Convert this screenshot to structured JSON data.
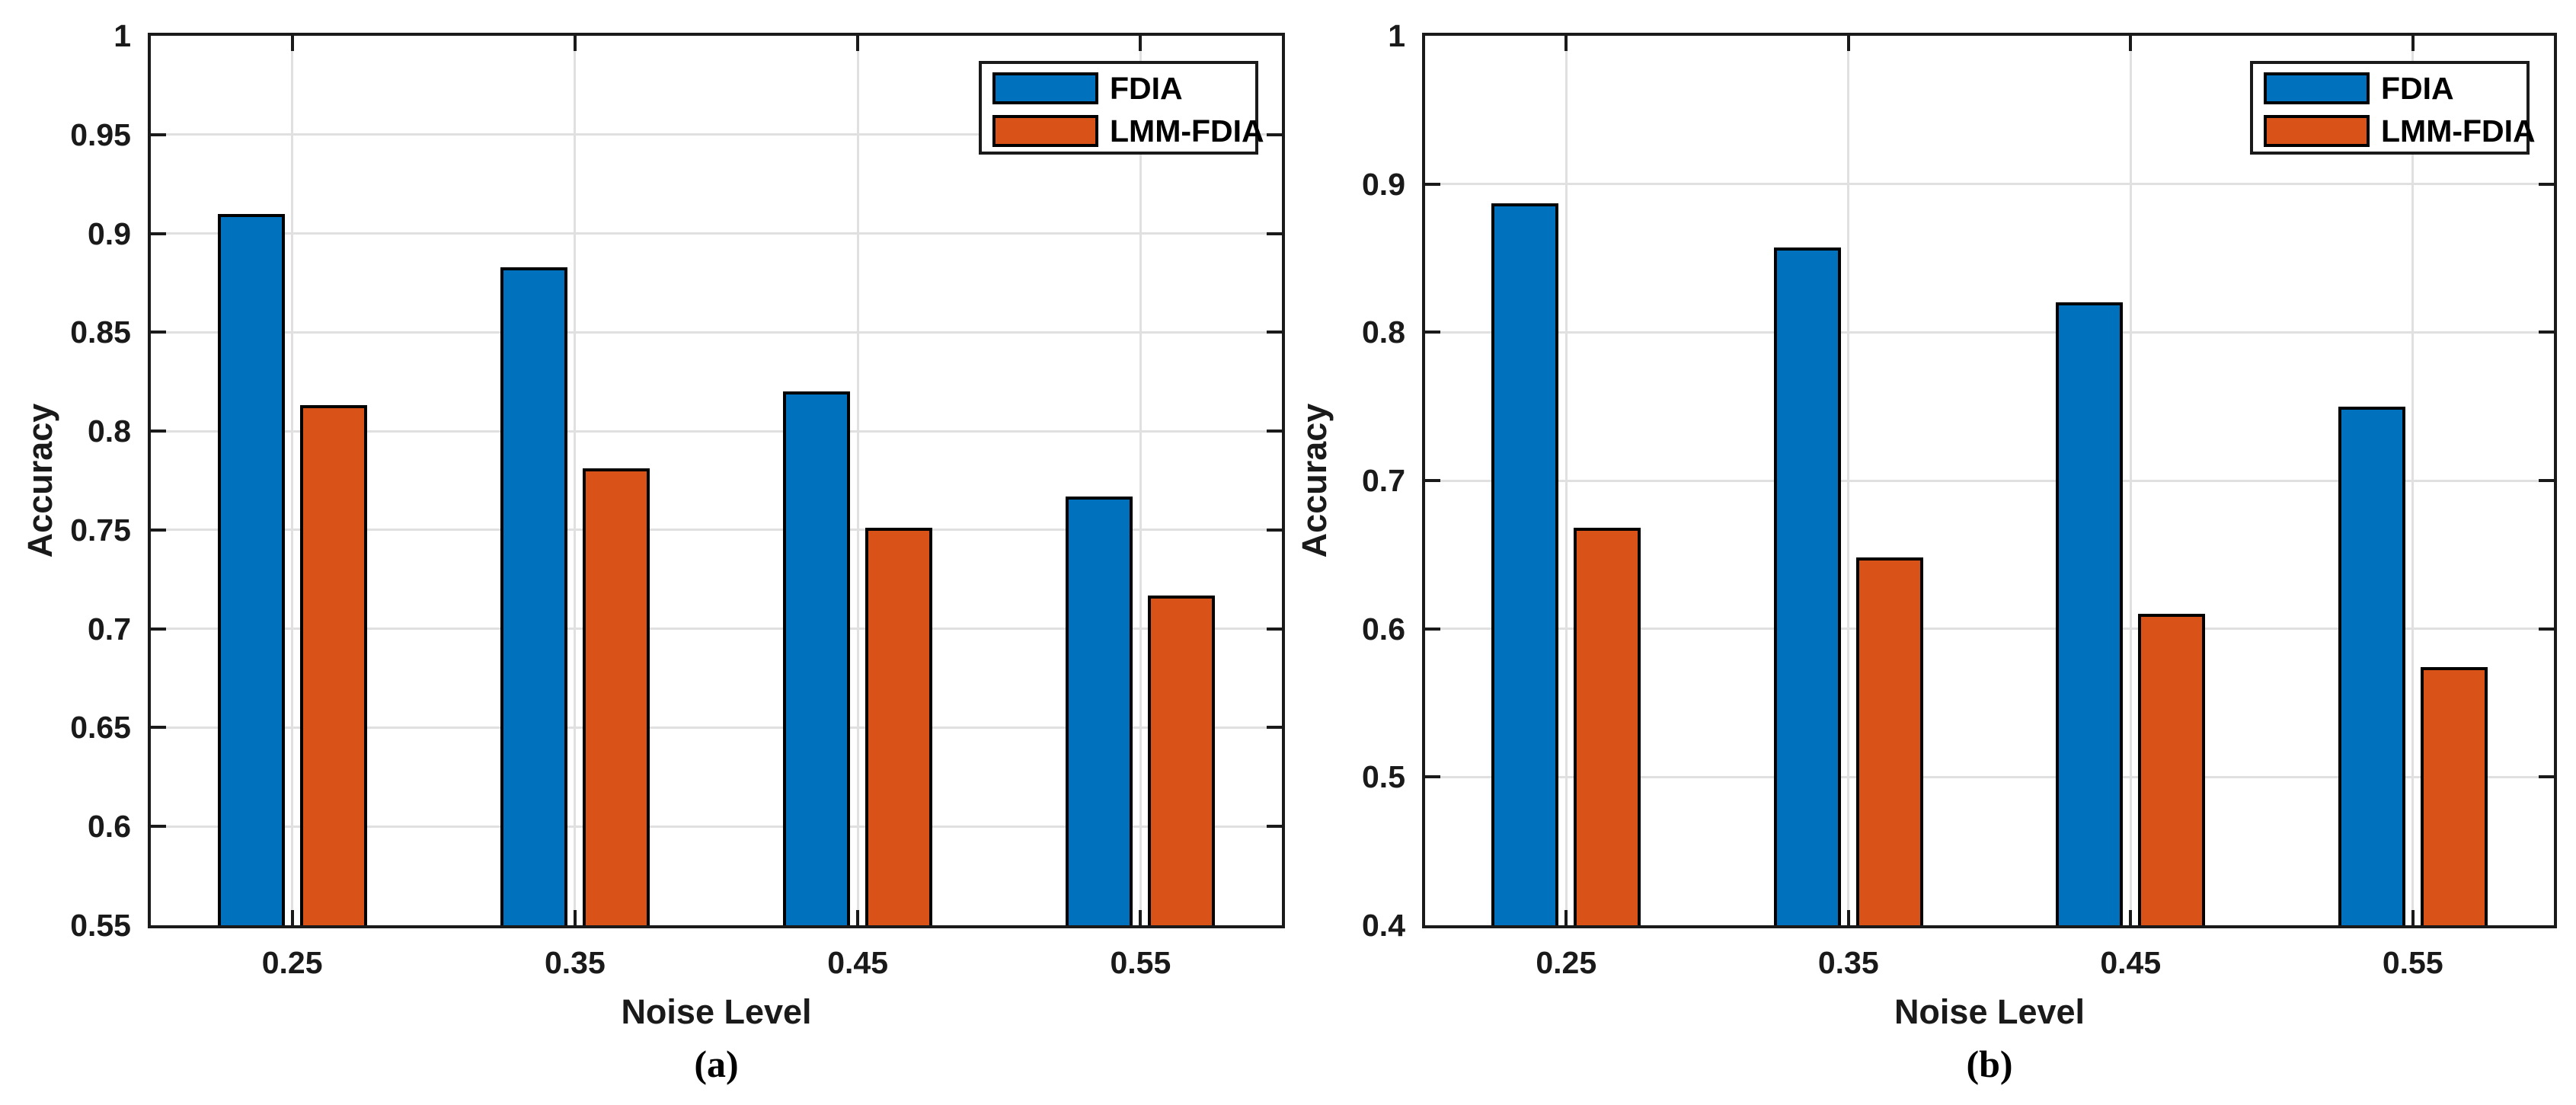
{
  "figure": {
    "background": "#ffffff",
    "axis_color": "#1a1a1a",
    "gridline_color": "#e0e0e0",
    "bar_edge_color": "#000000"
  },
  "chart_data": [
    {
      "type": "bar",
      "panel_caption": "(a)",
      "xlabel": "Noise Level",
      "ylabel": "Accuracy",
      "categories": [
        "0.25",
        "0.35",
        "0.45",
        "0.55"
      ],
      "series": [
        {
          "name": "FDIA",
          "color": "#0072BD",
          "values": [
            0.91,
            0.883,
            0.82,
            0.767
          ]
        },
        {
          "name": "LMM-FDIA",
          "color": "#D95319",
          "values": [
            0.813,
            0.781,
            0.751,
            0.717
          ]
        }
      ],
      "ylim": [
        0.55,
        1.0
      ],
      "yticks": [
        0.55,
        0.6,
        0.65,
        0.7,
        0.75,
        0.8,
        0.85,
        0.9,
        0.95,
        1
      ],
      "ytick_labels": [
        "0.55",
        "0.6",
        "0.65",
        "0.7",
        "0.75",
        "0.8",
        "0.85",
        "0.9",
        "0.95",
        "1"
      ],
      "grid": true,
      "legend_position": "top-right",
      "legend": [
        "FDIA",
        "LMM-FDIA"
      ]
    },
    {
      "type": "bar",
      "panel_caption": "(b)",
      "xlabel": "Noise Level",
      "ylabel": "Accuracy",
      "categories": [
        "0.25",
        "0.35",
        "0.45",
        "0.55"
      ],
      "series": [
        {
          "name": "FDIA",
          "color": "#0072BD",
          "values": [
            0.887,
            0.857,
            0.82,
            0.75
          ]
        },
        {
          "name": "LMM-FDIA",
          "color": "#D95319",
          "values": [
            0.668,
            0.648,
            0.61,
            0.574
          ]
        }
      ],
      "ylim": [
        0.4,
        1.0
      ],
      "yticks": [
        0.4,
        0.5,
        0.6,
        0.7,
        0.8,
        0.9,
        1
      ],
      "ytick_labels": [
        "0.4",
        "0.5",
        "0.6",
        "0.7",
        "0.8",
        "0.9",
        "1"
      ],
      "grid": true,
      "legend_position": "top-right",
      "legend": [
        "FDIA",
        "LMM-FDIA"
      ]
    }
  ]
}
